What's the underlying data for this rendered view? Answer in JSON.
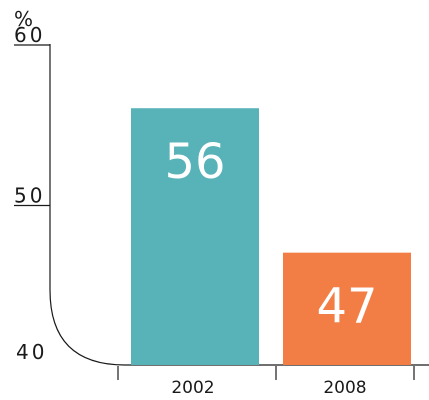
{
  "chart_data": {
    "type": "bar",
    "unit_label": "%",
    "categories": [
      "2002",
      "2008"
    ],
    "values": [
      56,
      47
    ],
    "value_labels": [
      "56",
      "47"
    ],
    "colors": [
      "#58b3b9",
      "#f37e45"
    ],
    "ylim": [
      40,
      60
    ],
    "yticks": [
      {
        "value": 60,
        "label": "60"
      },
      {
        "value": 50,
        "label": "50"
      },
      {
        "value": 40,
        "label": "40"
      }
    ],
    "title": "",
    "xlabel": "",
    "ylabel": "",
    "grid": false,
    "legend": "none"
  }
}
